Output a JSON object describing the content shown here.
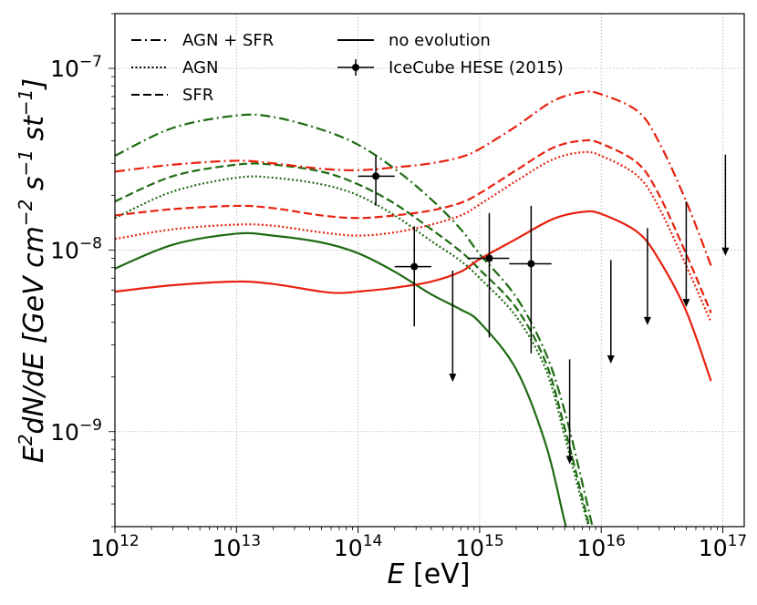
{
  "chart_data": {
    "type": "line",
    "x_scale": "log",
    "y_scale": "log",
    "xlim": [
      1000000000000.0,
      1.5e+17
    ],
    "ylim": [
      3e-10,
      2e-07
    ],
    "grid": true,
    "legend_position": "top-left",
    "xlabel": {
      "italic": "E",
      "text": " [eV]"
    },
    "ylabel": {
      "main": "E",
      "sup1": "2",
      "rest": "dN/dE [GeV cm",
      "sup2": "−2",
      "mid": " s",
      "sup3": "−1",
      "mid2": " st",
      "sup4": "−1",
      "end": "]"
    },
    "x_ticks": [
      {
        "value": 1000000000000.0,
        "base": "10",
        "exp": "12"
      },
      {
        "value": 10000000000000.0,
        "base": "10",
        "exp": "13"
      },
      {
        "value": 100000000000000.0,
        "base": "10",
        "exp": "14"
      },
      {
        "value": 1000000000000000.0,
        "base": "10",
        "exp": "15"
      },
      {
        "value": 1e+16,
        "base": "10",
        "exp": "16"
      },
      {
        "value": 1e+17,
        "base": "10",
        "exp": "17"
      }
    ],
    "y_ticks": [
      {
        "value": 1e-09,
        "base": "10",
        "exp": "−9"
      },
      {
        "value": 1e-08,
        "base": "10",
        "exp": "−8"
      },
      {
        "value": 1e-07,
        "base": "10",
        "exp": "−7"
      }
    ],
    "legend": [
      {
        "label": "AGN + SFR",
        "style": "dashdot"
      },
      {
        "label": "AGN",
        "style": "dotted"
      },
      {
        "label": "SFR",
        "style": "dashed"
      },
      {
        "label": "no evolution",
        "style": "solid"
      },
      {
        "label": "IceCube HESE (2015)",
        "style": "errorbar"
      }
    ],
    "series": [
      {
        "name": "AGN + SFR (green)",
        "color": "#1e6b12",
        "style": "dashdot",
        "x": [
          1000000000000.0,
          3000000000000.0,
          10000000000000.0,
          20000000000000.0,
          50000000000000.0,
          100000000000000.0,
          200000000000000.0,
          400000000000000.0,
          700000000000000.0,
          1000000000000000.0,
          2000000000000000.0,
          3500000000000000.0,
          5000000000000000.0,
          7000000000000000.0,
          9000000000000000.0
        ],
        "y": [
          3.3e-08,
          4.7e-08,
          5.5e-08,
          5.4e-08,
          4.6e-08,
          3.8e-08,
          2.8e-08,
          1.9e-08,
          1.3e-08,
          9.5e-09,
          5.5e-09,
          2.7e-09,
          1.3e-09,
          5.2e-10,
          2.5e-10
        ]
      },
      {
        "name": "SFR (green)",
        "color": "#1e6b12",
        "style": "dashed",
        "x": [
          1000000000000.0,
          3000000000000.0,
          10000000000000.0,
          20000000000000.0,
          50000000000000.0,
          100000000000000.0,
          200000000000000.0,
          400000000000000.0,
          700000000000000.0,
          1000000000000000.0,
          2000000000000000.0,
          3500000000000000.0,
          5000000000000000.0,
          7000000000000000.0,
          8500000000000000.0
        ],
        "y": [
          1.85e-08,
          2.55e-08,
          2.95e-08,
          2.95e-08,
          2.7e-08,
          2.3e-08,
          1.8e-08,
          1.3e-08,
          9.8e-09,
          7.8e-09,
          4.8e-09,
          2.4e-09,
          1.05e-09,
          4.3e-10,
          2.5e-10
        ]
      },
      {
        "name": "AGN (green)",
        "color": "#1e6b12",
        "style": "dotted",
        "x": [
          1000000000000.0,
          3000000000000.0,
          10000000000000.0,
          20000000000000.0,
          50000000000000.0,
          100000000000000.0,
          200000000000000.0,
          400000000000000.0,
          700000000000000.0,
          1000000000000000.0,
          2000000000000000.0,
          3500000000000000.0,
          5000000000000000.0,
          7000000000000000.0,
          8500000000000000.0
        ],
        "y": [
          1.5e-08,
          2.1e-08,
          2.5e-08,
          2.5e-08,
          2.3e-08,
          2e-08,
          1.55e-08,
          1.12e-08,
          8.7e-09,
          7e-09,
          4.3e-09,
          2.2e-09,
          9.5e-10,
          4e-10,
          2.5e-10
        ]
      },
      {
        "name": "no evolution (green)",
        "color": "#1e6b12",
        "style": "solid",
        "x": [
          1000000000000.0,
          3000000000000.0,
          10000000000000.0,
          20000000000000.0,
          50000000000000.0,
          100000000000000.0,
          200000000000000.0,
          400000000000000.0,
          700000000000000.0,
          1000000000000000.0,
          2000000000000000.0,
          3500000000000000.0,
          5000000000000000.0,
          6500000000000000.0
        ],
        "y": [
          7.9e-09,
          1.07e-08,
          1.23e-08,
          1.2e-08,
          1.1e-08,
          9.6e-09,
          7.6e-09,
          5.7e-09,
          4.7e-09,
          4e-09,
          2.2e-09,
          8.5e-10,
          3.2e-10,
          1.6e-10
        ]
      },
      {
        "name": "AGN + SFR (red)",
        "color": "#e8200e",
        "style": "dashdot",
        "x": [
          1000000000000.0,
          3000000000000.0,
          10000000000000.0,
          20000000000000.0,
          50000000000000.0,
          100000000000000.0,
          200000000000000.0,
          400000000000000.0,
          700000000000000.0,
          1000000000000000.0,
          2000000000000000.0,
          4000000000000000.0,
          7000000000000000.0,
          1e+16,
          2e+16,
          3e+16,
          5e+16,
          8e+16
        ],
        "y": [
          2.7e-08,
          2.95e-08,
          3.1e-08,
          3e-08,
          2.8e-08,
          2.75e-08,
          2.85e-08,
          3e-08,
          3.25e-08,
          3.6e-08,
          4.8e-08,
          6.6e-08,
          7.4e-08,
          7.2e-08,
          5.8e-08,
          3.9e-08,
          1.85e-08,
          8.2e-09
        ]
      },
      {
        "name": "SFR (red)",
        "color": "#e8200e",
        "style": "dashed",
        "x": [
          1000000000000.0,
          3000000000000.0,
          10000000000000.0,
          20000000000000.0,
          50000000000000.0,
          100000000000000.0,
          200000000000000.0,
          400000000000000.0,
          700000000000000.0,
          1000000000000000.0,
          2000000000000000.0,
          4000000000000000.0,
          7000000000000000.0,
          1e+16,
          2e+16,
          3e+16,
          5e+16,
          8e+16
        ],
        "y": [
          1.55e-08,
          1.68e-08,
          1.75e-08,
          1.7e-08,
          1.55e-08,
          1.5e-08,
          1.55e-08,
          1.65e-08,
          1.82e-08,
          2.05e-08,
          2.75e-08,
          3.65e-08,
          4e-08,
          3.85e-08,
          3e-08,
          2e-08,
          9.5e-09,
          4.5e-09
        ]
      },
      {
        "name": "AGN (red)",
        "color": "#e8200e",
        "style": "dotted",
        "x": [
          1000000000000.0,
          3000000000000.0,
          10000000000000.0,
          20000000000000.0,
          50000000000000.0,
          100000000000000.0,
          200000000000000.0,
          400000000000000.0,
          700000000000000.0,
          1000000000000000.0,
          2000000000000000.0,
          4000000000000000.0,
          7000000000000000.0,
          1e+16,
          2e+16,
          3e+16,
          5e+16,
          8e+16
        ],
        "y": [
          1.15e-08,
          1.3e-08,
          1.38e-08,
          1.36e-08,
          1.25e-08,
          1.2e-08,
          1.25e-08,
          1.38e-08,
          1.55e-08,
          1.78e-08,
          2.4e-08,
          3.15e-08,
          3.45e-08,
          3.3e-08,
          2.55e-08,
          1.7e-08,
          8.2e-09,
          4e-09
        ]
      },
      {
        "name": "no evolution (red)",
        "color": "#e8200e",
        "style": "solid",
        "x": [
          1000000000000.0,
          3000000000000.0,
          10000000000000.0,
          20000000000000.0,
          50000000000000.0,
          70000000000000.0,
          100000000000000.0,
          200000000000000.0,
          400000000000000.0,
          700000000000000.0,
          1000000000000000.0,
          2000000000000000.0,
          4000000000000000.0,
          7000000000000000.0,
          1e+16,
          2e+16,
          3e+16,
          5e+16,
          8e+16
        ],
        "y": [
          5.9e-09,
          6.4e-09,
          6.7e-09,
          6.5e-09,
          5.9e-09,
          5.8e-09,
          5.9e-09,
          6.2e-09,
          6.7e-09,
          7.6e-09,
          8.9e-09,
          1.15e-08,
          1.48e-08,
          1.62e-08,
          1.58e-08,
          1.25e-08,
          8.8e-09,
          4.6e-09,
          1.9e-09
        ]
      }
    ],
    "icecube_points": [
      {
        "x": 140000000000000.0,
        "xlo": 100000000000000.0,
        "xhi": 200000000000000.0,
        "y": 2.55e-08,
        "ylo": 1.75e-08,
        "yhi": 3.3e-08
      },
      {
        "x": 290000000000000.0,
        "xlo": 200000000000000.0,
        "xhi": 400000000000000.0,
        "y": 8.1e-09,
        "ylo": 3.8e-09,
        "yhi": 1.35e-08
      },
      {
        "x": 1200000000000000.0,
        "xlo": 800000000000000.0,
        "xhi": 1750000000000000.0,
        "y": 9e-09,
        "ylo": 3.3e-09,
        "yhi": 1.6e-08
      },
      {
        "x": 2650000000000000.0,
        "xlo": 1750000000000000.0,
        "xhi": 3900000000000000.0,
        "y": 8.4e-09,
        "ylo": 2.7e-09,
        "yhi": 1.75e-08
      }
    ],
    "icecube_upper_limits": [
      {
        "x": 600000000000000.0,
        "y": 7.7e-09,
        "arrow_to": 1.9e-09
      },
      {
        "x": 5500000000000000.0,
        "y": 2.5e-09,
        "arrow_to": 6.7e-10
      },
      {
        "x": 1.2e+16,
        "y": 8.8e-09,
        "arrow_to": 2.4e-09
      },
      {
        "x": 2.4e+16,
        "y": 1.32e-08,
        "arrow_to": 3.9e-09
      },
      {
        "x": 5e+16,
        "y": 1.85e-08,
        "arrow_to": 4.9e-09
      },
      {
        "x": 1.05e+17,
        "y": 3.35e-08,
        "arrow_to": 9.4e-09
      }
    ]
  }
}
